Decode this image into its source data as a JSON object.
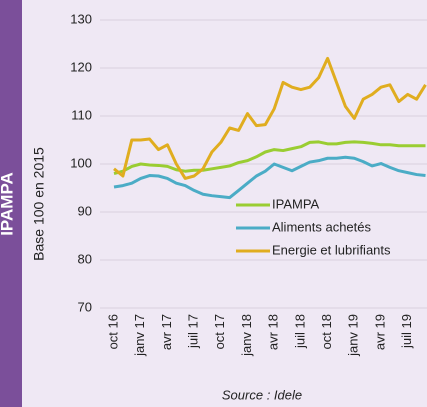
{
  "chart_data": {
    "type": "line",
    "side_title": "IPAMPA",
    "y_label": "Base 100 en 2015",
    "source": "Source : Idele",
    "categories": [
      "oct 16",
      null,
      null,
      "janv 17",
      null,
      null,
      "avr 17",
      null,
      null,
      "juil 17",
      null,
      null,
      "oct 17",
      null,
      null,
      "janv 18",
      null,
      null,
      "avr 18",
      null,
      null,
      "juil 18",
      null,
      null,
      "oct 18",
      null,
      null,
      "janv 19",
      null,
      null,
      "avr 19",
      null,
      null,
      "juil 19",
      null,
      null
    ],
    "series": [
      {
        "name": "IPAMPA",
        "color": "#9acd32",
        "values": [
          98,
          98.5,
          99.5,
          100,
          99.8,
          99.7,
          99.5,
          98.8,
          98.5,
          98.7,
          98.7,
          99,
          99.3,
          99.6,
          100.3,
          100.7,
          101.5,
          102.5,
          103,
          102.8,
          103.2,
          103.6,
          104.5,
          104.6,
          104.2,
          104.2,
          104.5,
          104.6,
          104.5,
          104.3,
          104,
          104,
          103.8,
          103.8,
          103.8,
          103.8
        ]
      },
      {
        "name": "Aliments achetés",
        "color": "#4bacc6",
        "values": [
          95.2,
          95.5,
          96,
          97,
          97.6,
          97.5,
          97,
          96,
          95.5,
          94.5,
          93.7,
          93.4,
          93.2,
          93,
          94.5,
          96,
          97.5,
          98.5,
          100,
          99.3,
          98.6,
          99.5,
          100.4,
          100.7,
          101.2,
          101.2,
          101.4,
          101.2,
          100.5,
          99.6,
          100.1,
          99.3,
          98.6,
          98.2,
          97.8,
          97.6
        ]
      },
      {
        "name": "Energie et lubrifiants",
        "color": "#e0ad1f",
        "values": [
          99,
          97.5,
          105,
          105,
          105.2,
          103,
          104,
          100,
          97,
          97.5,
          99,
          102.5,
          104.5,
          107.5,
          107,
          110.5,
          108,
          108.2,
          111.5,
          117,
          116,
          115.5,
          116,
          118,
          122,
          117,
          112,
          109.5,
          113.5,
          114.5,
          116,
          116.5,
          113,
          114.5,
          113.5,
          116.5
        ]
      }
    ],
    "ylim": [
      70,
      130
    ],
    "yticks": [
      70,
      80,
      90,
      100,
      110,
      120,
      130
    ],
    "grid": true
  }
}
